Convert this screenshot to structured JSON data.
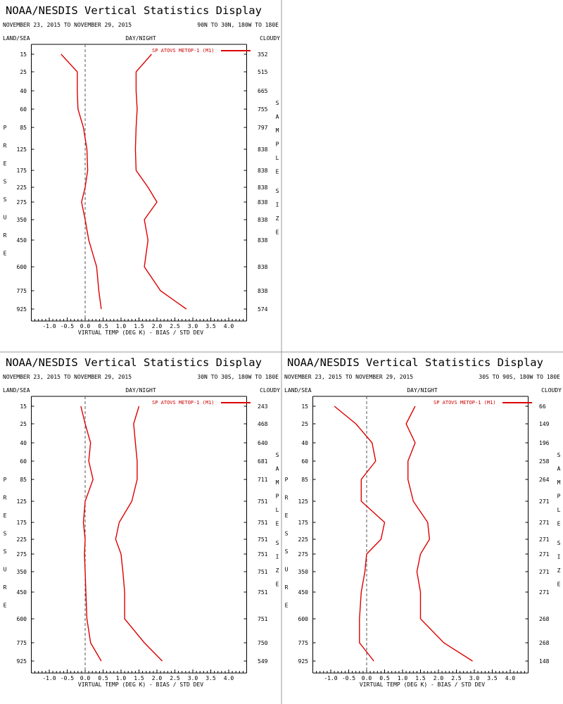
{
  "page": {
    "common": {
      "title": "NOAA/NESDIS Vertical Statistics Display",
      "date_range": "NOVEMBER 23, 2015 TO NOVEMBER 29, 2015",
      "label_land_sea": "LAND/SEA",
      "label_day_night": "DAY/NIGHT",
      "label_cloudy": "CLOUDY",
      "xlabel": "VIRTUAL TEMP (DEG K) - BIAS / STD DEV",
      "ylabel_letters": [
        "P",
        "R",
        "E",
        "S",
        "S",
        "U",
        "R",
        "E"
      ],
      "sample_letters_1": [
        "S",
        "A",
        "M",
        "P",
        "L",
        "E"
      ],
      "sample_letters_2": [
        "S",
        "I",
        "Z",
        "E"
      ],
      "legend": "SP ATOVS METOP-1 (M1)",
      "line_color": "#dd0000"
    }
  },
  "chart_data": [
    {
      "type": "line",
      "region": "90N TO 30N, 180W TO 180E",
      "pressure_levels": [
        "15",
        "25",
        "40",
        "60",
        "85",
        "125",
        "175",
        "225",
        "275",
        "350",
        "450",
        "600",
        "775",
        "925"
      ],
      "x_ticks": [
        "-1.0",
        "-0.5",
        "0.0",
        "0.5",
        "1.0",
        "1.5",
        "2.0",
        "2.5",
        "3.0",
        "3.5",
        "4.0"
      ],
      "xlim": [
        -1.5,
        4.5
      ],
      "series": [
        {
          "name": "bias",
          "values": [
            -0.67,
            -0.22,
            -0.22,
            -0.2,
            -0.05,
            0.05,
            0.07,
            0.0,
            -0.1,
            0.0,
            0.1,
            0.32,
            0.38,
            0.45
          ]
        },
        {
          "name": "std_dev",
          "values": [
            1.85,
            1.42,
            1.42,
            1.45,
            1.42,
            1.4,
            1.42,
            1.75,
            2.0,
            1.65,
            1.75,
            1.65,
            2.1,
            2.82
          ]
        }
      ],
      "sample_size": [
        "352",
        "515",
        "665",
        "755",
        "797",
        "838",
        "838",
        "838",
        "838",
        "838",
        "838",
        "838",
        "838",
        "574"
      ]
    },
    {
      "type": "line",
      "region": "30N TO 30S, 180W TO 180E",
      "pressure_levels": [
        "15",
        "25",
        "40",
        "60",
        "85",
        "125",
        "175",
        "225",
        "275",
        "350",
        "450",
        "600",
        "775",
        "925"
      ],
      "x_ticks": [
        "-1.0",
        "-0.5",
        "0.0",
        "0.5",
        "1.0",
        "1.5",
        "2.0",
        "2.5",
        "3.0",
        "3.5",
        "4.0"
      ],
      "xlim": [
        -1.5,
        4.5
      ],
      "series": [
        {
          "name": "bias",
          "values": [
            -0.12,
            0.0,
            0.15,
            0.1,
            0.22,
            0.0,
            -0.05,
            0.0,
            -0.02,
            0.0,
            0.02,
            0.05,
            0.15,
            0.45
          ]
        },
        {
          "name": "std_dev",
          "values": [
            1.5,
            1.35,
            1.4,
            1.45,
            1.45,
            1.3,
            0.95,
            0.85,
            1.0,
            1.05,
            1.1,
            1.1,
            1.65,
            2.15
          ]
        }
      ],
      "sample_size": [
        "243",
        "468",
        "640",
        "681",
        "711",
        "751",
        "751",
        "751",
        "751",
        "751",
        "751",
        "751",
        "750",
        "549"
      ]
    },
    {
      "type": "line",
      "region": "30S TO 90S, 180W TO 180E",
      "pressure_levels": [
        "15",
        "25",
        "40",
        "60",
        "85",
        "125",
        "175",
        "225",
        "275",
        "350",
        "450",
        "600",
        "775",
        "925"
      ],
      "x_ticks": [
        "-1.0",
        "-0.5",
        "0.0",
        "0.5",
        "1.0",
        "1.5",
        "2.0",
        "2.5",
        "3.0",
        "3.5",
        "4.0"
      ],
      "xlim": [
        -1.5,
        4.5
      ],
      "series": [
        {
          "name": "bias",
          "values": [
            -0.9,
            -0.3,
            0.15,
            0.25,
            -0.15,
            -0.15,
            0.5,
            0.4,
            0.0,
            -0.05,
            -0.15,
            -0.2,
            -0.2,
            0.2
          ]
        },
        {
          "name": "std_dev",
          "values": [
            1.35,
            1.1,
            1.35,
            1.15,
            1.15,
            1.3,
            1.7,
            1.75,
            1.5,
            1.4,
            1.5,
            1.5,
            2.15,
            2.95
          ]
        }
      ],
      "sample_size": [
        "66",
        "149",
        "196",
        "258",
        "264",
        "271",
        "271",
        "271",
        "271",
        "271",
        "271",
        "268",
        "268",
        "148"
      ]
    }
  ]
}
